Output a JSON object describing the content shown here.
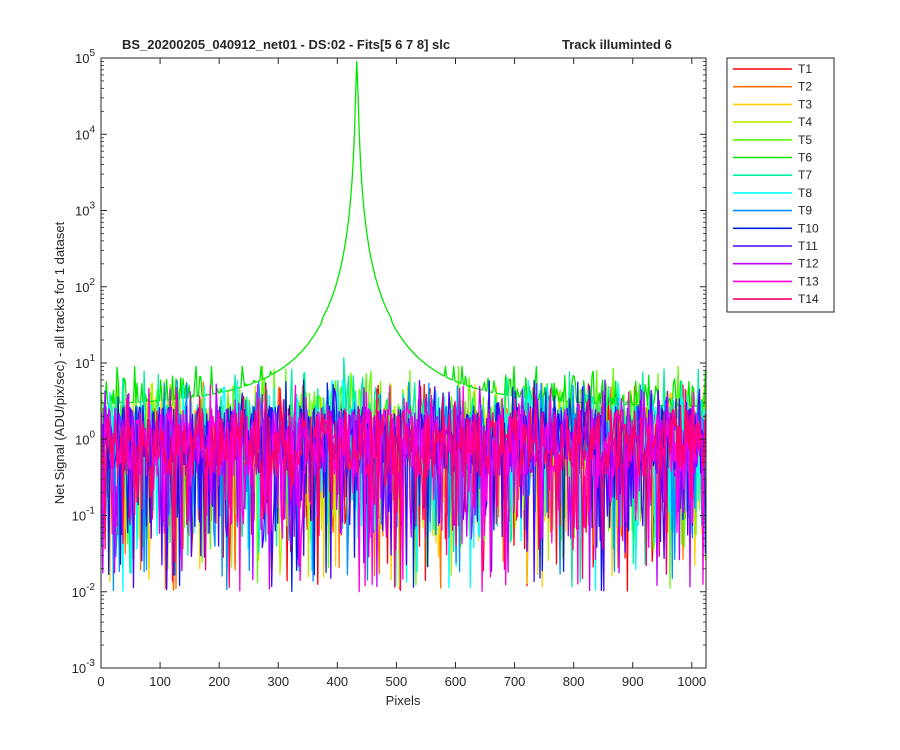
{
  "chart_data": {
    "type": "line",
    "title_left": "BS_20200205_040912_net01 - DS:02 - Fits[5  6  7  8]   slc",
    "title_right": "Track illuminted 6",
    "xlabel": "Pixels",
    "ylabel": "Net Signal (ADU/pix/sec) - all tracks for 1 dataset",
    "xlim": [
      0,
      1024
    ],
    "ylim": [
      0.001,
      100000
    ],
    "yscale": "log",
    "grid": false,
    "legend_placement": "outside-right",
    "x_ticks": [
      "0",
      "100",
      "200",
      "300",
      "400",
      "500",
      "600",
      "700",
      "800",
      "900",
      "1000"
    ],
    "x_tick_values": [
      0,
      100,
      200,
      300,
      400,
      500,
      600,
      700,
      800,
      900,
      1000
    ],
    "y_tick_exponents": [
      -3,
      -2,
      -1,
      0,
      1,
      2,
      3,
      4,
      5
    ],
    "y_tick_base": "10",
    "peak": {
      "track": "T6",
      "pixel": 433,
      "value": 90000
    },
    "series": [
      {
        "name": "T1",
        "color": "#ff0000",
        "level": 0.9
      },
      {
        "name": "T2",
        "color": "#ff7000",
        "level": 0.95
      },
      {
        "name": "T3",
        "color": "#ffd000",
        "level": 0.9
      },
      {
        "name": "T4",
        "color": "#b8f000",
        "level": 1.0
      },
      {
        "name": "T5",
        "color": "#60ff00",
        "level": 1.6
      },
      {
        "name": "T6",
        "color": "#00e600",
        "level": 2.5
      },
      {
        "name": "T7",
        "color": "#00f0a0",
        "level": 1.4
      },
      {
        "name": "T8",
        "color": "#00ffff",
        "level": 1.0
      },
      {
        "name": "T9",
        "color": "#0090ff",
        "level": 1.0
      },
      {
        "name": "T10",
        "color": "#0020e0",
        "level": 1.0
      },
      {
        "name": "T11",
        "color": "#5000ff",
        "level": 1.0
      },
      {
        "name": "T12",
        "color": "#c000ff",
        "level": 0.9
      },
      {
        "name": "T13",
        "color": "#ff00e0",
        "level": 0.9
      },
      {
        "name": "T14",
        "color": "#ff0070",
        "level": 0.9
      }
    ]
  }
}
